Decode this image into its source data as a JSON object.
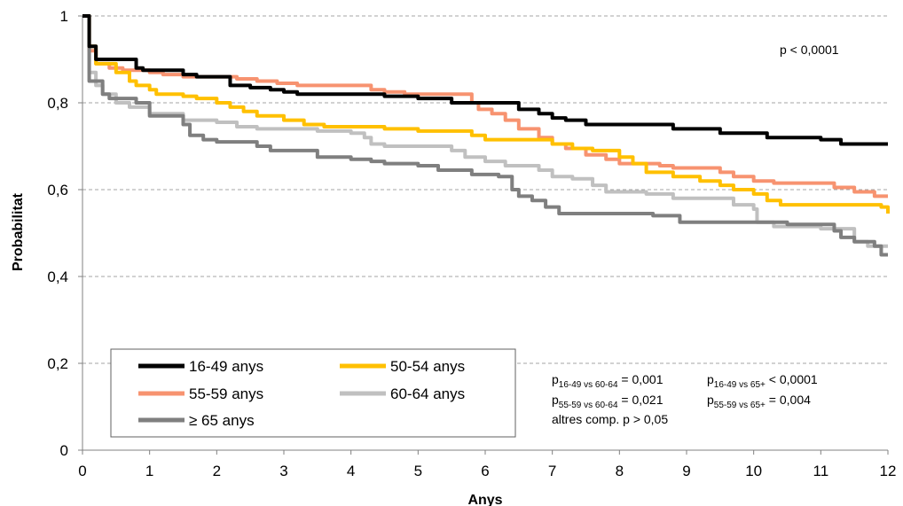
{
  "chart_data": {
    "type": "line",
    "step": true,
    "xlabel": "Anys",
    "ylabel": "Probabilitat",
    "xlim": [
      0,
      12
    ],
    "ylim": [
      0,
      1
    ],
    "x_ticks": [
      "0",
      "1",
      "2",
      "3",
      "4",
      "5",
      "6",
      "7",
      "8",
      "9",
      "10",
      "11",
      "12"
    ],
    "y_ticks": [
      "0",
      "0,2",
      "0,4",
      "0,6",
      "0,8",
      "1"
    ],
    "grid": "horizontal-dashed",
    "legend_position": "bottom-left",
    "annotation_top": "p < 0,0001",
    "pvalues": [
      {
        "p": "p",
        "sub": "16-49 vs 60-64",
        "eq": " = 0,001"
      },
      {
        "p": "p",
        "sub": "16-49 vs 65+",
        "eq": " < 0,0001"
      },
      {
        "p": "p",
        "sub": "55-59 vs 60-64",
        "eq": " = 0,021"
      },
      {
        "p": "p",
        "sub": "55-59 vs 65+",
        "eq": " = 0,004"
      }
    ],
    "pvalues_other": "altres comp. p > 0,05",
    "series": [
      {
        "name": "16-49 anys",
        "color": "#000000",
        "points": [
          [
            0,
            1
          ],
          [
            0.1,
            0.93
          ],
          [
            0.2,
            0.9
          ],
          [
            0.8,
            0.88
          ],
          [
            0.9,
            0.875
          ],
          [
            1.5,
            0.865
          ],
          [
            1.7,
            0.86
          ],
          [
            2.2,
            0.84
          ],
          [
            2.5,
            0.835
          ],
          [
            2.8,
            0.83
          ],
          [
            3.0,
            0.825
          ],
          [
            3.2,
            0.82
          ],
          [
            4.5,
            0.815
          ],
          [
            5.0,
            0.81
          ],
          [
            5.5,
            0.8
          ],
          [
            6.5,
            0.785
          ],
          [
            6.8,
            0.775
          ],
          [
            7.0,
            0.765
          ],
          [
            7.2,
            0.76
          ],
          [
            7.5,
            0.75
          ],
          [
            8.8,
            0.74
          ],
          [
            9.5,
            0.73
          ],
          [
            10.2,
            0.72
          ],
          [
            11.0,
            0.715
          ],
          [
            11.3,
            0.705
          ],
          [
            12,
            0.705
          ]
        ]
      },
      {
        "name": "50-54 anys",
        "color": "#FFC000",
        "points": [
          [
            0,
            1
          ],
          [
            0.1,
            0.93
          ],
          [
            0.2,
            0.89
          ],
          [
            0.5,
            0.87
          ],
          [
            0.7,
            0.85
          ],
          [
            0.8,
            0.84
          ],
          [
            1.0,
            0.83
          ],
          [
            1.1,
            0.82
          ],
          [
            1.5,
            0.815
          ],
          [
            1.7,
            0.81
          ],
          [
            2.0,
            0.8
          ],
          [
            2.2,
            0.79
          ],
          [
            2.4,
            0.78
          ],
          [
            2.6,
            0.77
          ],
          [
            3.0,
            0.76
          ],
          [
            3.3,
            0.75
          ],
          [
            3.6,
            0.745
          ],
          [
            4.5,
            0.74
          ],
          [
            5.0,
            0.735
          ],
          [
            5.8,
            0.725
          ],
          [
            6.0,
            0.715
          ],
          [
            7.0,
            0.705
          ],
          [
            7.3,
            0.695
          ],
          [
            7.6,
            0.69
          ],
          [
            8.0,
            0.675
          ],
          [
            8.2,
            0.66
          ],
          [
            8.4,
            0.64
          ],
          [
            8.8,
            0.63
          ],
          [
            9.2,
            0.62
          ],
          [
            9.5,
            0.61
          ],
          [
            9.7,
            0.6
          ],
          [
            10.0,
            0.59
          ],
          [
            10.2,
            0.575
          ],
          [
            10.4,
            0.565
          ],
          [
            11.9,
            0.56
          ],
          [
            12,
            0.545
          ]
        ]
      },
      {
        "name": "55-59 anys",
        "color": "#F79370",
        "points": [
          [
            0,
            1
          ],
          [
            0.1,
            0.92
          ],
          [
            0.2,
            0.89
          ],
          [
            0.4,
            0.88
          ],
          [
            0.6,
            0.875
          ],
          [
            1.0,
            0.87
          ],
          [
            1.2,
            0.865
          ],
          [
            1.5,
            0.86
          ],
          [
            2.3,
            0.855
          ],
          [
            2.6,
            0.85
          ],
          [
            2.9,
            0.845
          ],
          [
            3.2,
            0.84
          ],
          [
            4.3,
            0.83
          ],
          [
            4.5,
            0.825
          ],
          [
            4.8,
            0.82
          ],
          [
            5.8,
            0.8
          ],
          [
            5.9,
            0.785
          ],
          [
            6.1,
            0.775
          ],
          [
            6.3,
            0.76
          ],
          [
            6.5,
            0.74
          ],
          [
            6.8,
            0.72
          ],
          [
            7.0,
            0.705
          ],
          [
            7.2,
            0.695
          ],
          [
            7.5,
            0.68
          ],
          [
            7.8,
            0.67
          ],
          [
            8.0,
            0.66
          ],
          [
            8.6,
            0.655
          ],
          [
            8.8,
            0.65
          ],
          [
            9.5,
            0.64
          ],
          [
            9.7,
            0.63
          ],
          [
            10.0,
            0.62
          ],
          [
            10.3,
            0.615
          ],
          [
            11.2,
            0.605
          ],
          [
            11.5,
            0.595
          ],
          [
            11.8,
            0.585
          ],
          [
            12,
            0.585
          ]
        ]
      },
      {
        "name": "60-64 anys",
        "color": "#C0C0C0",
        "points": [
          [
            0,
            1
          ],
          [
            0.1,
            0.87
          ],
          [
            0.2,
            0.84
          ],
          [
            0.3,
            0.82
          ],
          [
            0.5,
            0.8
          ],
          [
            0.7,
            0.79
          ],
          [
            1.0,
            0.775
          ],
          [
            1.5,
            0.76
          ],
          [
            2.0,
            0.755
          ],
          [
            2.3,
            0.745
          ],
          [
            2.6,
            0.74
          ],
          [
            3.5,
            0.735
          ],
          [
            4.0,
            0.73
          ],
          [
            4.2,
            0.72
          ],
          [
            4.3,
            0.705
          ],
          [
            4.5,
            0.7
          ],
          [
            5.5,
            0.69
          ],
          [
            5.7,
            0.675
          ],
          [
            6.0,
            0.665
          ],
          [
            6.3,
            0.655
          ],
          [
            6.8,
            0.645
          ],
          [
            7.0,
            0.63
          ],
          [
            7.3,
            0.625
          ],
          [
            7.6,
            0.61
          ],
          [
            7.8,
            0.595
          ],
          [
            8.4,
            0.59
          ],
          [
            8.8,
            0.58
          ],
          [
            9.7,
            0.565
          ],
          [
            10.0,
            0.555
          ],
          [
            10.05,
            0.525
          ],
          [
            10.3,
            0.515
          ],
          [
            11.0,
            0.51
          ],
          [
            11.5,
            0.48
          ],
          [
            11.7,
            0.47
          ],
          [
            12,
            0.47
          ]
        ]
      },
      {
        "name": "≥ 65 anys",
        "color": "#7F7F7F",
        "points": [
          [
            0,
            1
          ],
          [
            0.1,
            0.85
          ],
          [
            0.3,
            0.82
          ],
          [
            0.4,
            0.81
          ],
          [
            0.8,
            0.8
          ],
          [
            1.0,
            0.77
          ],
          [
            1.5,
            0.75
          ],
          [
            1.6,
            0.725
          ],
          [
            1.8,
            0.715
          ],
          [
            2.0,
            0.71
          ],
          [
            2.6,
            0.7
          ],
          [
            2.8,
            0.69
          ],
          [
            3.5,
            0.685
          ],
          [
            3.5,
            0.675
          ],
          [
            4.0,
            0.67
          ],
          [
            4.3,
            0.665
          ],
          [
            4.5,
            0.66
          ],
          [
            5.0,
            0.655
          ],
          [
            5.3,
            0.645
          ],
          [
            5.8,
            0.635
          ],
          [
            6.2,
            0.63
          ],
          [
            6.4,
            0.6
          ],
          [
            6.5,
            0.585
          ],
          [
            6.7,
            0.575
          ],
          [
            6.9,
            0.56
          ],
          [
            7.1,
            0.545
          ],
          [
            8.5,
            0.54
          ],
          [
            8.9,
            0.525
          ],
          [
            10.5,
            0.52
          ],
          [
            11.2,
            0.505
          ],
          [
            11.3,
            0.49
          ],
          [
            11.5,
            0.48
          ],
          [
            11.8,
            0.47
          ],
          [
            11.9,
            0.45
          ],
          [
            12,
            0.45
          ]
        ]
      }
    ]
  }
}
